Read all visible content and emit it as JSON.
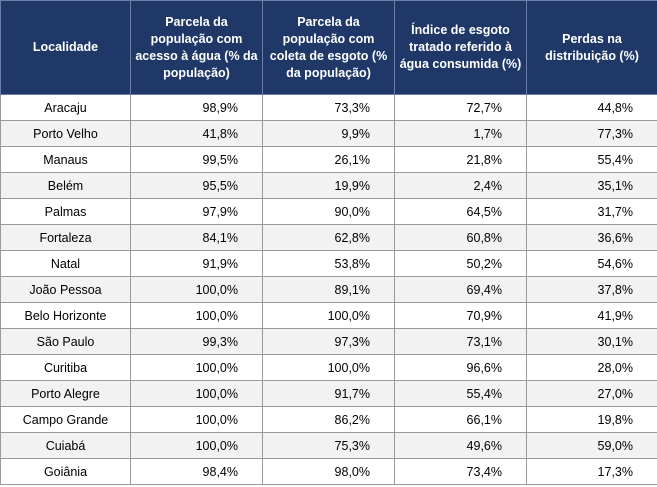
{
  "table": {
    "headers": [
      "Localidade",
      "Parcela da população com acesso à água (% da população)",
      "Parcela da população com coleta de esgoto (% da população)",
      "Índice de esgoto tratado referido à água consumida (%)",
      "Perdas na distribuição (%)"
    ],
    "rows": [
      [
        "Aracaju",
        "98,9%",
        "73,3%",
        "72,7%",
        "44,8%"
      ],
      [
        "Porto Velho",
        "41,8%",
        "9,9%",
        "1,7%",
        "77,3%"
      ],
      [
        "Manaus",
        "99,5%",
        "26,1%",
        "21,8%",
        "55,4%"
      ],
      [
        "Belém",
        "95,5%",
        "19,9%",
        "2,4%",
        "35,1%"
      ],
      [
        "Palmas",
        "97,9%",
        "90,0%",
        "64,5%",
        "31,7%"
      ],
      [
        "Fortaleza",
        "84,1%",
        "62,8%",
        "60,8%",
        "36,6%"
      ],
      [
        "Natal",
        "91,9%",
        "53,8%",
        "50,2%",
        "54,6%"
      ],
      [
        "João Pessoa",
        "100,0%",
        "89,1%",
        "69,4%",
        "37,8%"
      ],
      [
        "Belo Horizonte",
        "100,0%",
        "100,0%",
        "70,9%",
        "41,9%"
      ],
      [
        "São Paulo",
        "99,3%",
        "97,3%",
        "73,1%",
        "30,1%"
      ],
      [
        "Curitiba",
        "100,0%",
        "100,0%",
        "96,6%",
        "28,0%"
      ],
      [
        "Porto Alegre",
        "100,0%",
        "91,7%",
        "55,4%",
        "27,0%"
      ],
      [
        "Campo Grande",
        "100,0%",
        "86,2%",
        "66,1%",
        "19,8%"
      ],
      [
        "Cuiabá",
        "100,0%",
        "75,3%",
        "49,6%",
        "59,0%"
      ],
      [
        "Goiânia",
        "98,4%",
        "98,0%",
        "73,4%",
        "17,3%"
      ]
    ]
  },
  "colors": {
    "header_background": "#1f3868",
    "header_text": "#ffffff",
    "zebra_stripe": "#f2f2f2"
  }
}
